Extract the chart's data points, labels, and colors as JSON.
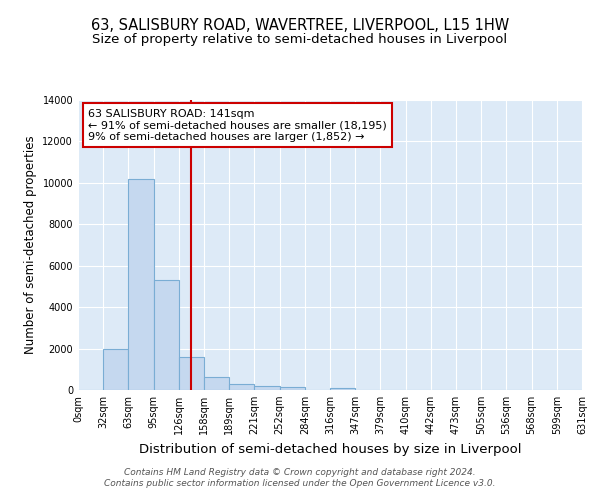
{
  "title": "63, SALISBURY ROAD, WAVERTREE, LIVERPOOL, L15 1HW",
  "subtitle": "Size of property relative to semi-detached houses in Liverpool",
  "xlabel": "Distribution of semi-detached houses by size in Liverpool",
  "ylabel": "Number of semi-detached properties",
  "bin_labels": [
    "0sqm",
    "32sqm",
    "63sqm",
    "95sqm",
    "126sqm",
    "158sqm",
    "189sqm",
    "221sqm",
    "252sqm",
    "284sqm",
    "316sqm",
    "347sqm",
    "379sqm",
    "410sqm",
    "442sqm",
    "473sqm",
    "505sqm",
    "536sqm",
    "568sqm",
    "599sqm",
    "631sqm"
  ],
  "bar_values": [
    0,
    2000,
    10200,
    5300,
    1600,
    650,
    280,
    190,
    130,
    0,
    110,
    0,
    0,
    0,
    0,
    0,
    0,
    0,
    0,
    0
  ],
  "bar_color": "#c5d8ef",
  "bar_edgecolor": "#7aadd4",
  "bar_linewidth": 0.8,
  "vline_color": "#cc0000",
  "ylim": [
    0,
    14000
  ],
  "yticks": [
    0,
    2000,
    4000,
    6000,
    8000,
    10000,
    12000,
    14000
  ],
  "background_color": "#ddeaf7",
  "annotation_text": "63 SALISBURY ROAD: 141sqm\n← 91% of semi-detached houses are smaller (18,195)\n9% of semi-detached houses are larger (1,852) →",
  "annotation_box_facecolor": "#ffffff",
  "annotation_box_edgecolor": "#cc0000",
  "footer": "Contains HM Land Registry data © Crown copyright and database right 2024.\nContains public sector information licensed under the Open Government Licence v3.0.",
  "title_fontsize": 10.5,
  "subtitle_fontsize": 9.5,
  "xlabel_fontsize": 9.5,
  "ylabel_fontsize": 8.5,
  "tick_fontsize": 7,
  "annotation_fontsize": 8,
  "footer_fontsize": 6.5
}
